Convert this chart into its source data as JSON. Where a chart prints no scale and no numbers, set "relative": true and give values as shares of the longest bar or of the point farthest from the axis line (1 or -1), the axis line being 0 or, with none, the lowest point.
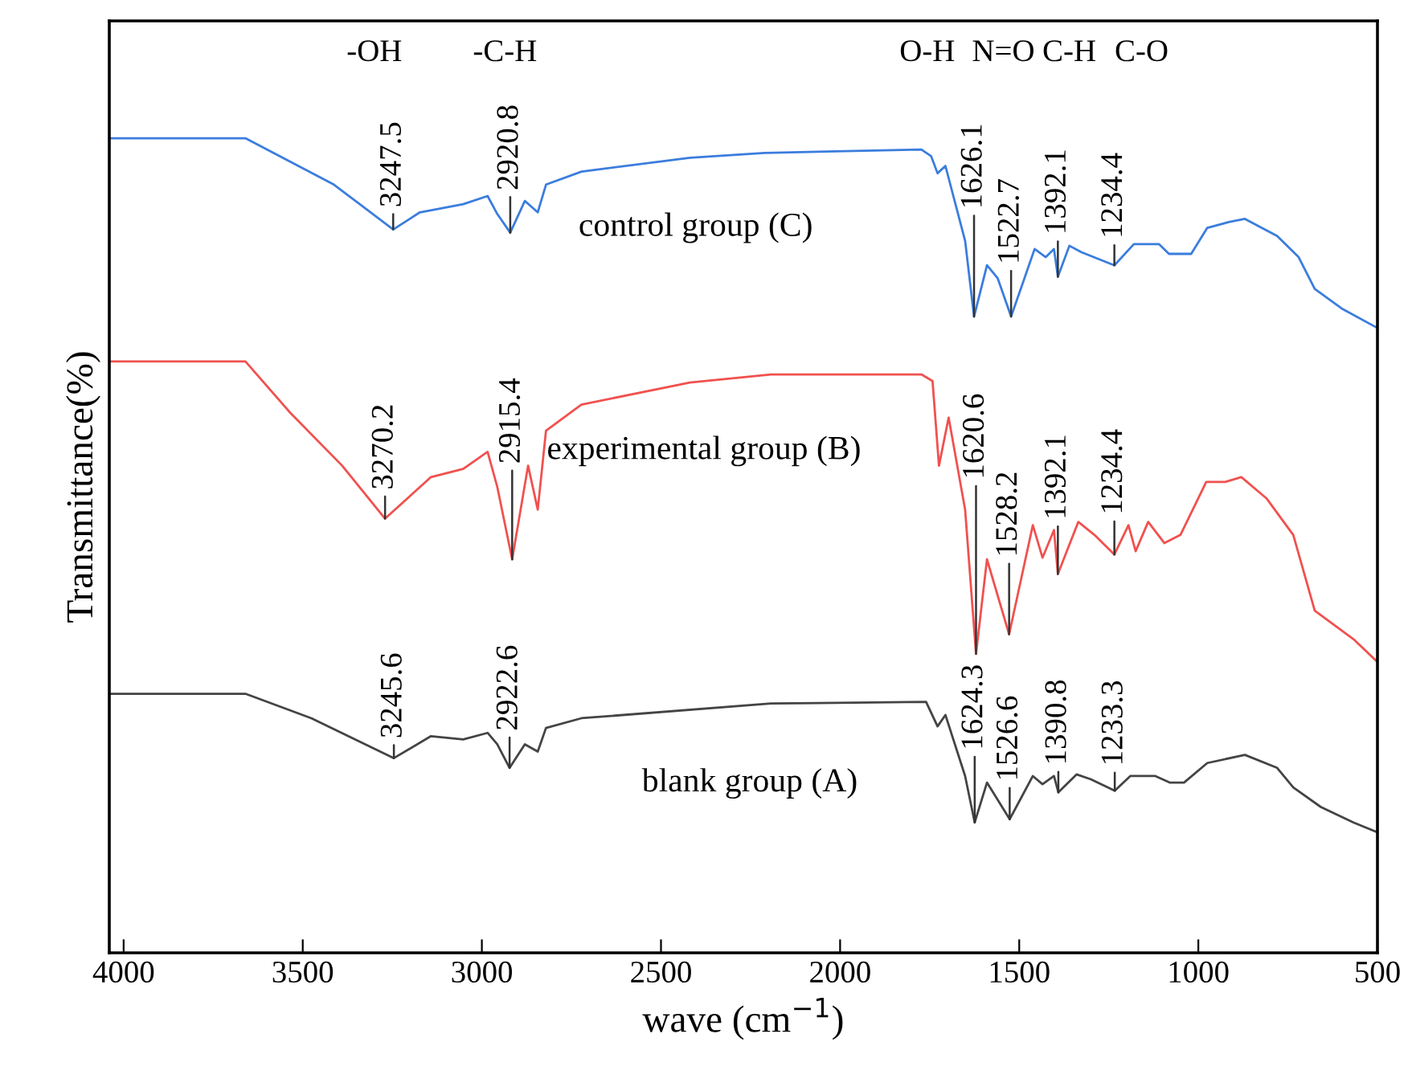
{
  "chart_data": {
    "type": "line",
    "xlabel": "wave (cm$^{−1}$)",
    "ylabel": "Transmittance(%)",
    "relative": true,
    "xlim": [
      4040,
      500
    ],
    "xticks": [
      4000,
      3500,
      3000,
      2500,
      2000,
      1500,
      1000,
      500
    ],
    "tick_labels": "x",
    "grid": false,
    "legend": false,
    "marker": "none",
    "line_style": "solid",
    "series": [
      {
        "name": "control group (C)",
        "color": "#3b7ddd",
        "x": [
          4040,
          3660,
          3413,
          3247.5,
          3173,
          3052,
          2984,
          2957,
          2920.8,
          2880,
          2844,
          2821,
          2722,
          2419,
          2211,
          1773,
          1746,
          1728,
          1706,
          1651,
          1626.1,
          1590,
          1560,
          1522.7,
          1457,
          1426,
          1403,
          1392.1,
          1360,
          1326,
          1234.4,
          1180,
          1110,
          1082,
          1020,
          975,
          915,
          870,
          780,
          720,
          675,
          600,
          500
        ],
        "values": [
          1.0,
          1.0,
          0.943,
          0.888,
          0.909,
          0.919,
          0.929,
          0.907,
          0.884,
          0.923,
          0.909,
          0.943,
          0.959,
          0.976,
          0.982,
          0.986,
          0.978,
          0.957,
          0.966,
          0.874,
          0.781,
          0.844,
          0.828,
          0.781,
          0.864,
          0.854,
          0.864,
          0.83,
          0.868,
          0.86,
          0.844,
          0.87,
          0.87,
          0.858,
          0.858,
          0.89,
          0.897,
          0.901,
          0.88,
          0.854,
          0.815,
          0.791,
          0.767
        ]
      },
      {
        "name": "experimental group (B)",
        "color": "#f0514f",
        "x": [
          4040,
          3660,
          3535,
          3390,
          3270.2,
          3142,
          3052,
          2984,
          2957,
          2915.4,
          2871,
          2844,
          2821,
          2722,
          2419,
          2193,
          1773,
          1742,
          1724,
          1697,
          1651,
          1620.6,
          1590,
          1528.2,
          1462,
          1435,
          1403,
          1392.1,
          1335,
          1290,
          1234.4,
          1195,
          1175,
          1140,
          1095,
          1050,
          978,
          925,
          880,
          810,
          735,
          675,
          567,
          500
        ],
        "values": [
          0.726,
          0.726,
          0.663,
          0.598,
          0.533,
          0.584,
          0.594,
          0.615,
          0.572,
          0.483,
          0.598,
          0.544,
          0.641,
          0.673,
          0.7,
          0.71,
          0.71,
          0.702,
          0.598,
          0.657,
          0.544,
          0.367,
          0.483,
          0.391,
          0.525,
          0.485,
          0.519,
          0.465,
          0.529,
          0.513,
          0.489,
          0.525,
          0.493,
          0.529,
          0.503,
          0.513,
          0.578,
          0.578,
          0.584,
          0.558,
          0.513,
          0.42,
          0.385,
          0.357
        ]
      },
      {
        "name": "blank group (A)",
        "color": "#444444",
        "x": [
          4040,
          3660,
          3476,
          3245.6,
          3142,
          3052,
          2984,
          2957,
          2922.6,
          2880,
          2844,
          2821,
          2722,
          2193,
          1760,
          1728,
          1706,
          1651,
          1624.3,
          1590,
          1526.6,
          1462,
          1435,
          1403,
          1390.8,
          1340,
          1300,
          1233.3,
          1190,
          1120,
          1080,
          1040,
          975,
          870,
          780,
          735,
          658,
          567,
          500
        ],
        "values": [
          0.318,
          0.318,
          0.288,
          0.239,
          0.266,
          0.262,
          0.27,
          0.256,
          0.227,
          0.256,
          0.247,
          0.276,
          0.288,
          0.306,
          0.308,
          0.278,
          0.292,
          0.217,
          0.16,
          0.209,
          0.164,
          0.217,
          0.207,
          0.217,
          0.197,
          0.219,
          0.213,
          0.199,
          0.217,
          0.217,
          0.209,
          0.209,
          0.233,
          0.243,
          0.227,
          0.203,
          0.179,
          0.16,
          0.148
        ]
      }
    ],
    "annotations": [
      "-OH",
      "-C-H",
      "O-H",
      "N=O",
      "C-H",
      "C-O",
      {
        "text": "3247.5",
        "x": 3247.5,
        "y": 0.888
      },
      {
        "text": "2920.8",
        "x": 2920.8,
        "y": 0.884
      },
      {
        "text": "1626.1",
        "x": 1626.1,
        "y": 0.781
      },
      {
        "text": "1522.7",
        "x": 1522.7,
        "y": 0.781
      },
      {
        "text": "1392.1",
        "x": 1392.1,
        "y": 0.83
      },
      {
        "text": "1234.4",
        "x": 1234.4,
        "y": 0.844
      },
      {
        "text": "3270.2",
        "x": 3270.2,
        "y": 0.533
      },
      {
        "text": "2915.4",
        "x": 2915.4,
        "y": 0.483
      },
      {
        "text": "1620.6",
        "x": 1620.6,
        "y": 0.367
      },
      {
        "text": "1528.2",
        "x": 1528.2,
        "y": 0.391
      },
      {
        "text": "1392.1",
        "x": 1392.1,
        "y": 0.465
      },
      {
        "text": "1234.4",
        "x": 1234.4,
        "y": 0.489
      },
      {
        "text": "3245.6",
        "x": 3245.6,
        "y": 0.239
      },
      {
        "text": "2922.6",
        "x": 2922.6,
        "y": 0.227
      },
      {
        "text": "1624.3",
        "x": 1624.3,
        "y": 0.16
      },
      {
        "text": "1526.6",
        "x": 1526.6,
        "y": 0.164
      },
      {
        "text": "1390.8",
        "x": 1390.8,
        "y": 0.197
      },
      {
        "text": "1233.3",
        "x": 1233.3,
        "y": 0.199
      }
    ]
  }
}
